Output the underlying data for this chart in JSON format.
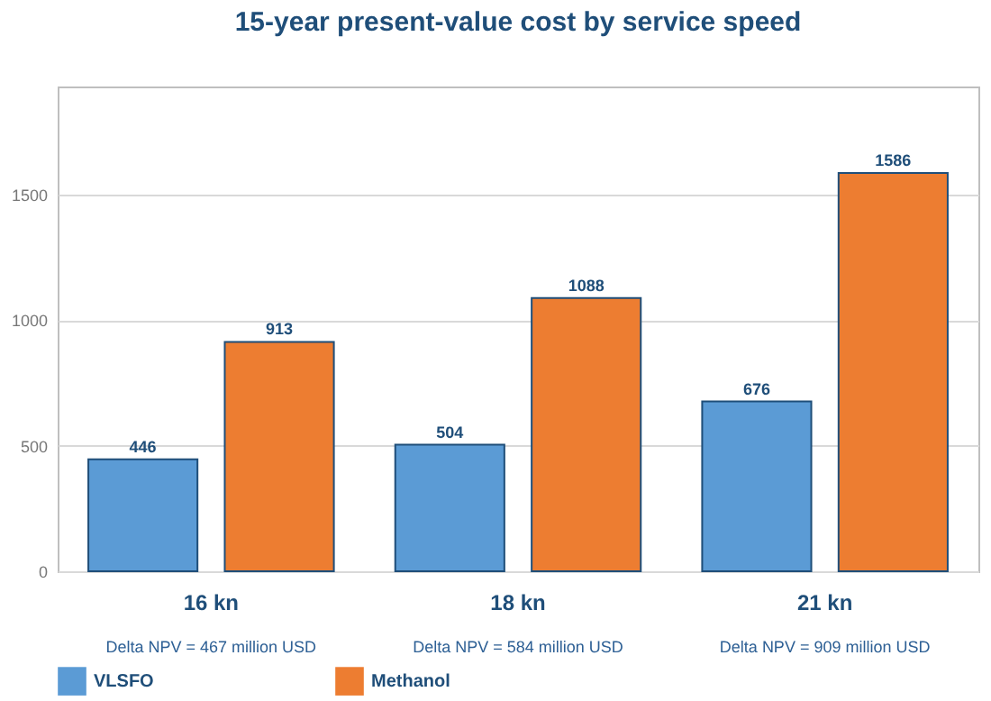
{
  "chart_data": {
    "type": "bar",
    "title": "15-year present-value cost by service speed",
    "categories": [
      "16 kn",
      "18 kn",
      "21 kn"
    ],
    "series": [
      {
        "name": "VLSFO",
        "color": "#5b9bd5",
        "values": [
          446,
          504,
          676
        ]
      },
      {
        "name": "Methanol",
        "color": "#ed7d31",
        "values": [
          913,
          1088,
          1586
        ]
      }
    ],
    "ylim": [
      0,
      1930
    ],
    "yticks": [
      0,
      500,
      1000,
      1500
    ],
    "grid": "y",
    "legend": "bottom",
    "data_labels": true,
    "annotations": [
      "Delta NPV = 467 million USD",
      "Delta NPV = 584 million USD",
      "Delta NPV = 909 million USD"
    ]
  }
}
